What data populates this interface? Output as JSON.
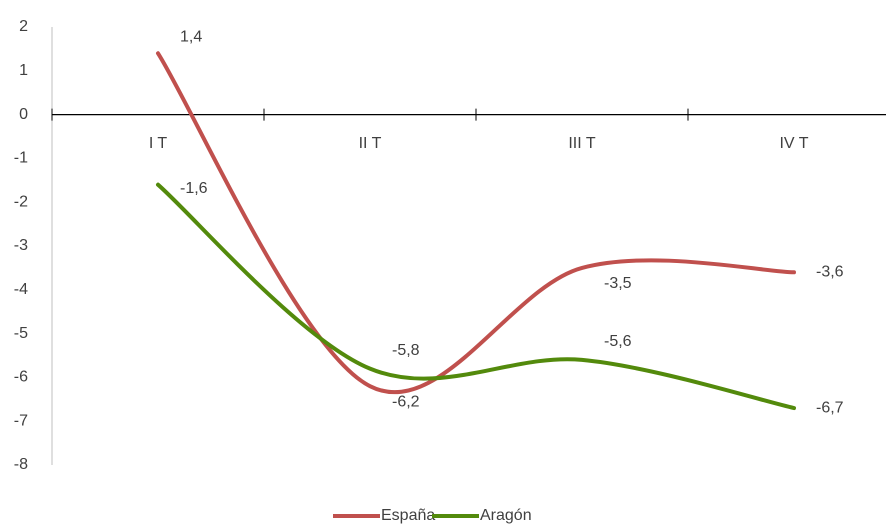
{
  "chart_data": {
    "type": "line",
    "categories": [
      "I T",
      "II T",
      "III T",
      "IV T"
    ],
    "series": [
      {
        "name": "España",
        "color": "#c0504d",
        "values": [
          1.4,
          -6.2,
          -3.5,
          -3.6
        ],
        "value_labels": [
          "1,4",
          "-6,2",
          "-3,5",
          "-3,6"
        ]
      },
      {
        "name": "Aragón",
        "color": "#538a0c",
        "values": [
          -1.6,
          -5.8,
          -5.6,
          -6.7
        ],
        "value_labels": [
          "-1,6",
          "-5,8",
          "-5,6",
          "-6,7"
        ]
      }
    ],
    "ylim": [
      -8,
      2
    ],
    "yticks": [
      -8,
      -7,
      -6,
      -5,
      -4,
      -3,
      -2,
      -1,
      0,
      1,
      2
    ],
    "smooth": true
  }
}
